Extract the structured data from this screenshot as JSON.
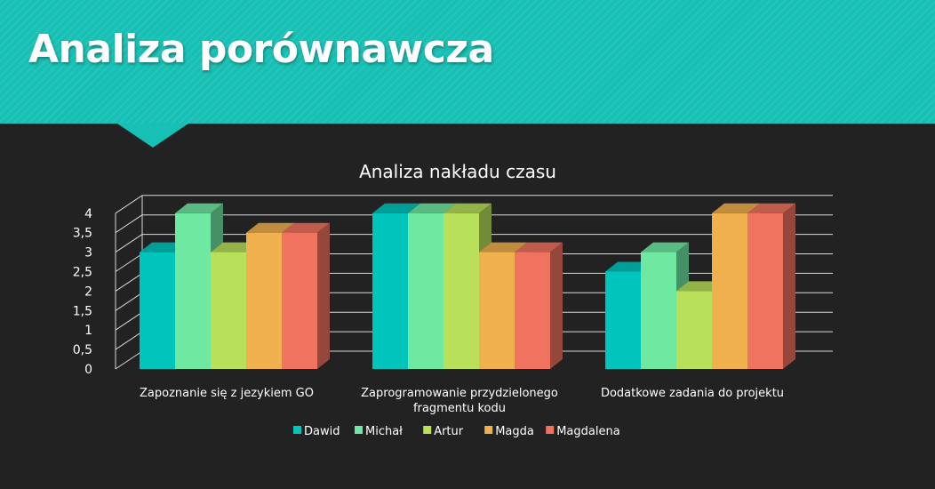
{
  "slide": {
    "title": "Analiza porównawcza"
  },
  "colors": {
    "header_bg": "#17c0b4",
    "background": "#222222",
    "Dawid": "#00c5bd",
    "Michał": "#6fe9a2",
    "Artur": "#b8e05a",
    "Magda": "#f0b04e",
    "Magdalena": "#f0735f"
  },
  "chart_data": {
    "type": "bar",
    "style": "3d-clustered-column",
    "title": "Analiza nakładu czasu",
    "categories": [
      "Zapoznanie się z jezykiem GO",
      "Zaprogramowanie przydzielonego fragmentu kodu",
      "Dodatkowe zadania do projektu"
    ],
    "series": [
      {
        "name": "Dawid",
        "values": [
          3,
          4,
          2.5
        ],
        "color": "#00c5bd"
      },
      {
        "name": "Michał",
        "values": [
          4,
          4,
          3
        ],
        "color": "#6fe9a2"
      },
      {
        "name": "Artur",
        "values": [
          3,
          4,
          2
        ],
        "color": "#b8e05a"
      },
      {
        "name": "Magda",
        "values": [
          3.5,
          3,
          4
        ],
        "color": "#f0b04e"
      },
      {
        "name": "Magdalena",
        "values": [
          3.5,
          3,
          4
        ],
        "color": "#f0735f"
      }
    ],
    "y_ticks": [
      "0",
      "0,5",
      "1",
      "1,5",
      "2",
      "2,5",
      "3",
      "3,5",
      "4"
    ],
    "ylim": [
      0,
      4
    ],
    "grid": true,
    "legend": "bottom",
    "xlabel": "",
    "ylabel": ""
  }
}
